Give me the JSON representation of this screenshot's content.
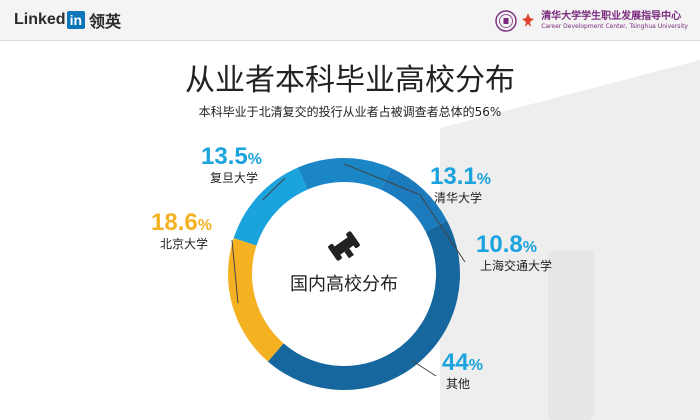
{
  "header": {
    "linkedin_word": "Linked",
    "linkedin_in": "in",
    "linkedin_cn": "领英",
    "tsinghua_cn": "清华大学学生职业发展指导中心",
    "tsinghua_en": "Career Development Center, Tsinghua University"
  },
  "colors": {
    "blue_light": "#1aa3dc",
    "blue_mid": "#1b86c6",
    "blue_dark": "#17679f",
    "yellow": "#f4b223"
  },
  "center_label": "国内高校分布",
  "chart_data": {
    "type": "pie",
    "title": "从业者本科毕业高校分布",
    "subtitle": "本科毕业于北清复交的投行从业者占被调查者总体的56%",
    "unit": "%",
    "categories": [
      "复旦大学",
      "清华大学",
      "上海交通大学",
      "其他",
      "北京大学"
    ],
    "values": [
      13.5,
      13.1,
      10.8,
      44,
      18.6
    ],
    "value_labels": [
      "13.5",
      "13.1",
      "10.8",
      "44",
      "18.6"
    ],
    "colors": [
      "#1aa3dc",
      "#1b86c6",
      "#1b7bbd",
      "#17679f",
      "#f4b223"
    ]
  }
}
